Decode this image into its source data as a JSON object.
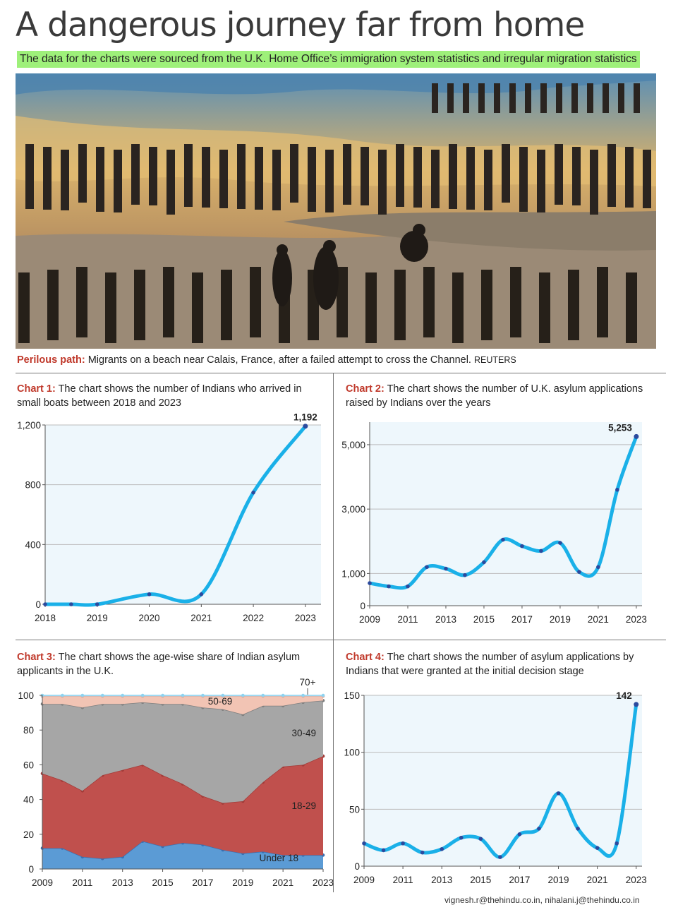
{
  "headline": "A dangerous journey far from home",
  "subhead": "The data for the charts were sourced from the U.K. Home Office’s immigration system statistics and irregular migration statistics",
  "caption": {
    "label": "Perilous path:",
    "text": "Migrants on a beach near Calais, France, after a failed attempt to cross the Channel.",
    "credit": "REUTERS"
  },
  "footer": "vignesh.r@thehindu.co.in, nihalani.j@thehindu.co.in",
  "colors": {
    "line": "#1ab0e8",
    "marker": "#2b4a9e",
    "under18": "#5b9bd5",
    "r18_29": "#c0504d",
    "r30_49": "#a6a6a6",
    "r50_69": "#f2c4b4",
    "r70": "#bfe6f7",
    "highlight": "#9ef07a"
  },
  "chart_data": [
    {
      "id": "chart1",
      "label": "Chart 1:",
      "title": "The chart shows the number of Indians who arrived in small boats between 2018 and 2023",
      "type": "line",
      "x": [
        2018,
        2018.5,
        2019,
        2020,
        2021,
        2022,
        2023
      ],
      "values": [
        0,
        0,
        0,
        67,
        67,
        748,
        1192
      ],
      "xticks": [
        "2018",
        "2019",
        "2020",
        "2021",
        "2022",
        "2023"
      ],
      "yticks": [
        "0",
        "400",
        "800",
        "1,200"
      ],
      "ylim": [
        0,
        1200
      ],
      "end_label": "1,192"
    },
    {
      "id": "chart2",
      "label": "Chart 2:",
      "title": "The chart shows the number of U.K. asylum applications raised by Indians over the years",
      "type": "line",
      "x": [
        2009,
        2010,
        2011,
        2012,
        2013,
        2014,
        2015,
        2016,
        2017,
        2018,
        2019,
        2020,
        2021,
        2022,
        2023
      ],
      "values": [
        700,
        600,
        600,
        1200,
        1150,
        950,
        1350,
        2050,
        1850,
        1700,
        1950,
        1050,
        1200,
        3600,
        5253
      ],
      "xticks": [
        "2009",
        "2011",
        "2013",
        "2015",
        "2017",
        "2019",
        "2021",
        "2023"
      ],
      "yticks": [
        "0",
        "1,000",
        "3,000",
        "5,000"
      ],
      "ylim": [
        0,
        5700
      ],
      "end_label": "5,253"
    },
    {
      "id": "chart3",
      "label": "Chart 3:",
      "title": "The chart shows the age-wise share of Indian asylum applicants in the U.K.",
      "type": "area",
      "x": [
        2009,
        2010,
        2011,
        2012,
        2013,
        2014,
        2015,
        2016,
        2017,
        2018,
        2019,
        2020,
        2021,
        2022,
        2023
      ],
      "series": [
        {
          "name": "Under 18",
          "values": [
            12,
            12,
            7,
            6,
            7,
            16,
            13,
            15,
            14,
            11,
            9,
            10,
            8,
            8,
            8
          ]
        },
        {
          "name": "18-29",
          "values": [
            43,
            39,
            38,
            48,
            50,
            44,
            41,
            34,
            28,
            27,
            30,
            40,
            51,
            52,
            57
          ]
        },
        {
          "name": "30-49",
          "values": [
            40,
            44,
            48,
            41,
            38,
            36,
            41,
            46,
            51,
            54,
            50,
            44,
            35,
            36,
            32
          ]
        },
        {
          "name": "50-69",
          "values": [
            4.5,
            4.5,
            6.5,
            4.5,
            4.5,
            3.5,
            4.5,
            4.5,
            6.5,
            7.5,
            10.5,
            5.5,
            5.5,
            3.5,
            2.5
          ]
        },
        {
          "name": "70+",
          "values": [
            0.5,
            0.5,
            0.5,
            0.5,
            0.5,
            0.5,
            0.5,
            0.5,
            0.5,
            0.5,
            0.5,
            0.5,
            0.5,
            0.5,
            0.5
          ]
        }
      ],
      "xticks": [
        "2009",
        "2011",
        "2013",
        "2015",
        "2017",
        "2019",
        "2021",
        "2023"
      ],
      "yticks": [
        "0",
        "20",
        "40",
        "60",
        "80",
        "100"
      ],
      "ylim": [
        0,
        100
      ]
    },
    {
      "id": "chart4",
      "label": "Chart 4:",
      "title": "The chart shows the number of asylum applications by Indians that were granted at the initial decision stage",
      "type": "line",
      "x": [
        2009,
        2010,
        2011,
        2012,
        2013,
        2014,
        2015,
        2016,
        2017,
        2018,
        2019,
        2020,
        2021,
        2022,
        2023
      ],
      "values": [
        20,
        14,
        20,
        12,
        15,
        25,
        24,
        8,
        28,
        33,
        64,
        33,
        16,
        20,
        142
      ],
      "xticks": [
        "2009",
        "2011",
        "2013",
        "2015",
        "2017",
        "2019",
        "2021",
        "2023"
      ],
      "yticks": [
        "0",
        "50",
        "100",
        "150"
      ],
      "ylim": [
        0,
        150
      ],
      "end_label": "142"
    }
  ]
}
